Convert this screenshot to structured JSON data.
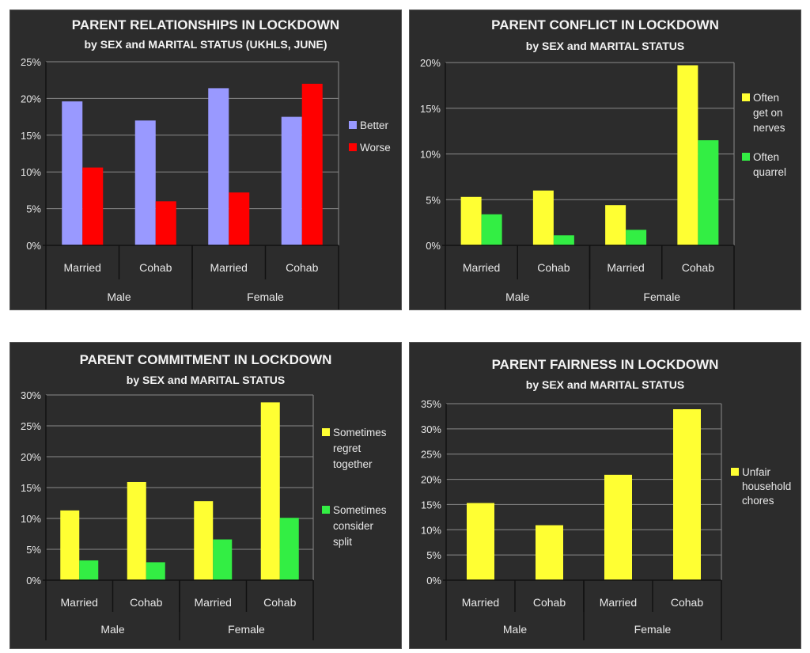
{
  "chart_data": [
    {
      "type": "bar",
      "title": "PARENT RELATIONSHIPS IN LOCKDOWN",
      "subtitle": "by SEX and MARITAL STATUS (UKHLS, JUNE)",
      "categories": [
        "Married",
        "Cohab",
        "Married",
        "Cohab"
      ],
      "groups": [
        {
          "label": "Male",
          "span": 2
        },
        {
          "label": "Female",
          "span": 2
        }
      ],
      "series": [
        {
          "name": "Better",
          "color": "#9999ff",
          "values": [
            19.6,
            17.0,
            21.4,
            17.5
          ]
        },
        {
          "name": "Worse",
          "color": "#ff0000",
          "values": [
            10.6,
            6.0,
            7.2,
            22.0
          ]
        }
      ],
      "legend_labels": [
        [
          "Better"
        ],
        [
          "Worse"
        ]
      ],
      "yticks": [
        "0%",
        "5%",
        "10%",
        "15%",
        "20%",
        "25%"
      ],
      "ylim": [
        0,
        25
      ],
      "ystep": 5,
      "xlabel": "",
      "ylabel": "",
      "grid": true,
      "legend": "right"
    },
    {
      "type": "bar",
      "title": "PARENT CONFLICT IN LOCKDOWN",
      "subtitle": "by SEX and MARITAL STATUS",
      "categories": [
        "Married",
        "Cohab",
        "Married",
        "Cohab"
      ],
      "groups": [
        {
          "label": "Male",
          "span": 2
        },
        {
          "label": "Female",
          "span": 2
        }
      ],
      "series": [
        {
          "name": "Often get on nerves",
          "color": "#ffff33",
          "values": [
            5.3,
            6.0,
            4.4,
            19.7
          ]
        },
        {
          "name": "Often quarrel",
          "color": "#33ee44",
          "values": [
            3.4,
            1.1,
            1.7,
            11.5
          ]
        }
      ],
      "legend_labels": [
        [
          "Often",
          "get on",
          "nerves"
        ],
        [
          "Often",
          "quarrel"
        ]
      ],
      "yticks": [
        "0%",
        "5%",
        "10%",
        "15%",
        "20%"
      ],
      "ylim": [
        0,
        20
      ],
      "ystep": 5,
      "xlabel": "",
      "ylabel": "",
      "grid": true,
      "legend": "right"
    },
    {
      "type": "bar",
      "title": "PARENT COMMITMENT IN LOCKDOWN",
      "subtitle": "by SEX and MARITAL STATUS",
      "categories": [
        "Married",
        "Cohab",
        "Married",
        "Cohab"
      ],
      "groups": [
        {
          "label": "Male",
          "span": 2
        },
        {
          "label": "Female",
          "span": 2
        }
      ],
      "series": [
        {
          "name": "Sometimes regret together",
          "color": "#ffff33",
          "values": [
            11.3,
            15.9,
            12.8,
            28.8
          ]
        },
        {
          "name": "Sometimes consider split",
          "color": "#33ee44",
          "values": [
            3.2,
            2.9,
            6.6,
            10.1
          ]
        }
      ],
      "legend_labels": [
        [
          "Sometimes",
          "regret",
          "together"
        ],
        [
          "Sometimes",
          "consider",
          "split"
        ]
      ],
      "yticks": [
        "0%",
        "5%",
        "10%",
        "15%",
        "20%",
        "25%",
        "30%"
      ],
      "ylim": [
        0,
        30
      ],
      "ystep": 5,
      "xlabel": "",
      "ylabel": "",
      "grid": true,
      "legend": "right"
    },
    {
      "type": "bar",
      "title": "PARENT FAIRNESS IN LOCKDOWN",
      "subtitle": "by SEX and MARITAL STATUS",
      "categories": [
        "Married",
        "Cohab",
        "Married",
        "Cohab"
      ],
      "groups": [
        {
          "label": "Male",
          "span": 2
        },
        {
          "label": "Female",
          "span": 2
        }
      ],
      "series": [
        {
          "name": "Unfair household chores",
          "color": "#ffff33",
          "values": [
            15.3,
            10.9,
            20.9,
            33.9
          ]
        }
      ],
      "legend_labels": [
        [
          "Unfair",
          "household",
          "chores"
        ]
      ],
      "yticks": [
        "0%",
        "5%",
        "10%",
        "15%",
        "20%",
        "25%",
        "30%",
        "35%"
      ],
      "ylim": [
        0,
        35
      ],
      "ystep": 5,
      "xlabel": "",
      "ylabel": "",
      "grid": true,
      "legend": "right"
    }
  ]
}
